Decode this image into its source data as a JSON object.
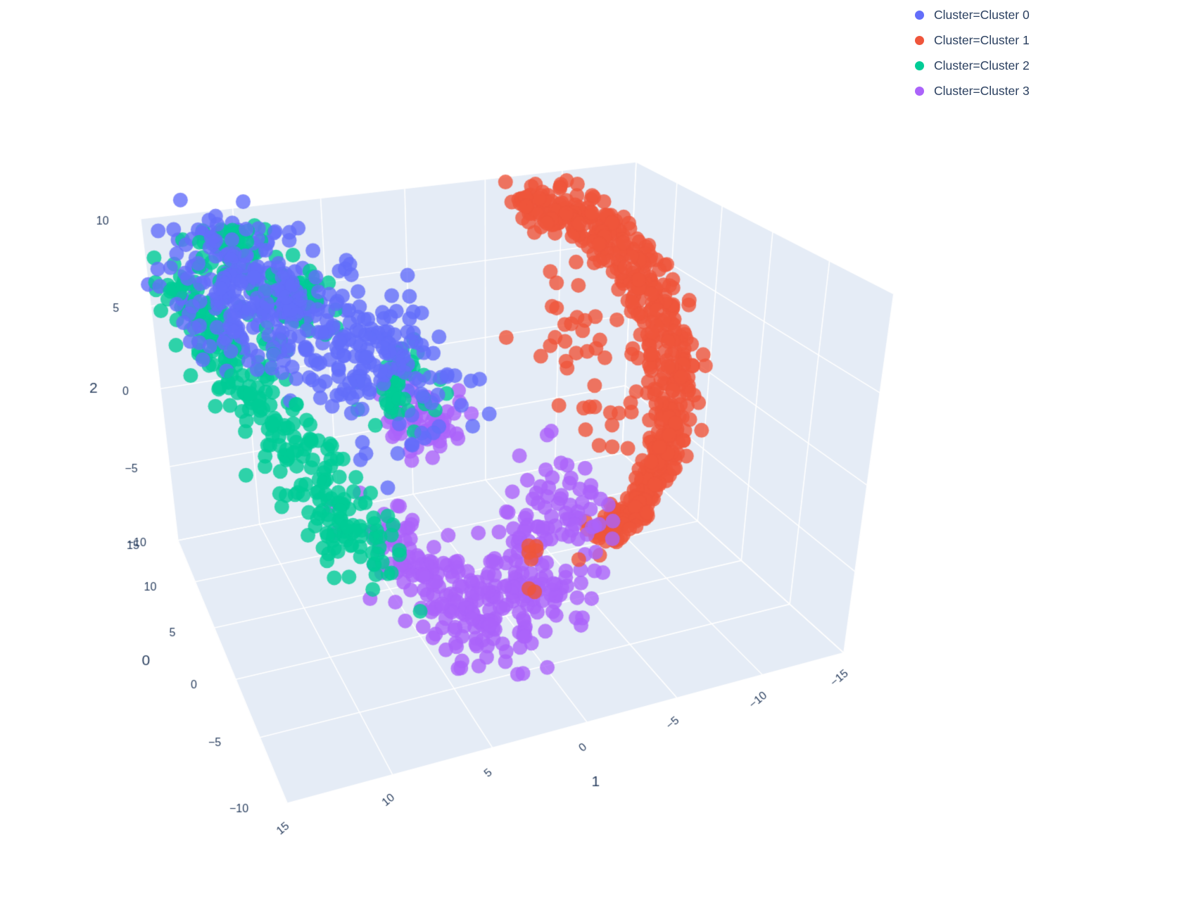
{
  "page": {
    "background": "#ffffff"
  },
  "legend": {
    "items": [
      {
        "label": "Cluster=Cluster 0",
        "color": "#636EFA"
      },
      {
        "label": "Cluster=Cluster 1",
        "color": "#EF553B"
      },
      {
        "label": "Cluster=Cluster 2",
        "color": "#00CC96"
      },
      {
        "label": "Cluster=Cluster 3",
        "color": "#AB63FA"
      }
    ]
  },
  "chart_data": {
    "type": "scatter",
    "subtype": "scatter3d",
    "title": "",
    "legend_position": "top-right",
    "grid": true,
    "pane_color": "#E5ECF6",
    "grid_color": "#FFFFFF",
    "label_color": "#2a3f5f",
    "marker": {
      "size": 21,
      "opacity": 0.8
    },
    "axes": {
      "axis0": {
        "title": "0",
        "range": [
          -10,
          15
        ],
        "ticks": [
          {
            "v": 15,
            "label": "15"
          },
          {
            "v": 10,
            "label": "10"
          },
          {
            "v": 5,
            "label": "5"
          },
          {
            "v": 0,
            "label": "0"
          },
          {
            "v": -5,
            "label": "−5"
          },
          {
            "v": -10,
            "label": "−10"
          }
        ]
      },
      "axis1": {
        "title": "1",
        "range": [
          -15,
          15
        ],
        "ticks": [
          {
            "v": 15,
            "label": "15"
          },
          {
            "v": 10,
            "label": "10"
          },
          {
            "v": 5,
            "label": "5"
          },
          {
            "v": 0,
            "label": "0"
          },
          {
            "v": -5,
            "label": "−5"
          },
          {
            "v": -10,
            "label": "−10"
          },
          {
            "v": -15,
            "label": "−15"
          }
        ]
      },
      "axis2": {
        "title": "2",
        "range": [
          -10,
          10
        ],
        "ticks": [
          {
            "v": 10,
            "label": "10"
          },
          {
            "v": 5,
            "label": "5"
          },
          {
            "v": 0,
            "label": "0"
          },
          {
            "v": -5,
            "label": "−5"
          },
          {
            "v": -10,
            "label": "−10"
          }
        ]
      }
    },
    "clusters": [
      {
        "name": "Cluster 0",
        "color": "#636EFA",
        "components": [
          {
            "type": "band",
            "n": 300,
            "from": [
              11,
              12.5,
              9
            ],
            "to": [
              3,
              3.5,
              3
            ],
            "bow": [
              0,
              0,
              0
            ],
            "jitter": [
              3,
              1.6,
              1.5
            ]
          },
          {
            "type": "blob",
            "n": 120,
            "center": [
              8,
              11,
              7
            ],
            "spread": [
              2.5,
              1.8,
              1.8
            ]
          },
          {
            "type": "blob",
            "n": 5,
            "center": [
              2,
              6,
              -0.5
            ],
            "spread": [
              1.2,
              0.9,
              0.9
            ]
          }
        ]
      },
      {
        "name": "Cluster 1",
        "color": "#EF553B",
        "components": [
          {
            "type": "arcs",
            "n_arcs": 9,
            "pts": 60,
            "a1c": -5,
            "a2c": 1,
            "r1_base": 6.0,
            "r1_step": 0.5,
            "r1_jitter": 0.5,
            "r2_base": 8.2,
            "r2_step": 0.12,
            "theta_deg": [
              -78,
              88
            ],
            "a0_base": 0.5,
            "a0_step": 0.35,
            "a0_amp": 4.2,
            "jitter": [
              0.5,
              0.35,
              0.3
            ]
          },
          {
            "type": "blob",
            "n": 45,
            "center": [
              5,
              -7,
              3
            ],
            "spread": [
              2.5,
              1.5,
              3.0
            ]
          },
          {
            "type": "blob",
            "n": 8,
            "center": [
              0,
              -2,
              -7
            ],
            "spread": [
              0.8,
              0.8,
              0.6
            ]
          }
        ]
      },
      {
        "name": "Cluster 2",
        "color": "#00CC96",
        "components": [
          {
            "type": "band",
            "n": 280,
            "from": [
              13,
              14,
              7
            ],
            "to": [
              -1,
              7.5,
              -4
            ],
            "bow": [
              0,
              0,
              0
            ],
            "jitter": [
              2.0,
              0.9,
              1.2
            ]
          },
          {
            "type": "blob",
            "n": 50,
            "center": [
              12,
              10.5,
              8.5
            ],
            "spread": [
              1.2,
              1.0,
              0.8
            ]
          },
          {
            "type": "blob",
            "n": 45,
            "center": [
              9,
              8,
              6.5
            ],
            "spread": [
              1.0,
              0.9,
              0.8
            ]
          },
          {
            "type": "blob",
            "n": 45,
            "center": [
              6,
              3.5,
              2
            ],
            "spread": [
              1.2,
              1.0,
              0.9
            ]
          }
        ]
      },
      {
        "name": "Cluster 3",
        "color": "#AB63FA",
        "components": [
          {
            "type": "band",
            "n": 330,
            "from": [
              1,
              6.5,
              -4
            ],
            "to": [
              1,
              -5,
              -4
            ],
            "bow": [
              0,
              0,
              -6
            ],
            "jitter": [
              2.8,
              0.9,
              0.9
            ]
          },
          {
            "type": "blob",
            "n": 60,
            "center": [
              8,
              2,
              -1.5
            ],
            "spread": [
              1.5,
              1.2,
              0.9
            ]
          }
        ]
      }
    ]
  }
}
